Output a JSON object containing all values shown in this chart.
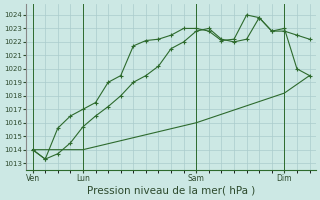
{
  "bg_color": "#cce8e4",
  "grid_color": "#aacccc",
  "line_color": "#2d6a2d",
  "xlabel": "Pression niveau de la mer( hPa )",
  "xlabel_fontsize": 7.5,
  "yticks": [
    1013,
    1014,
    1015,
    1016,
    1017,
    1018,
    1019,
    1020,
    1021,
    1022,
    1023,
    1024
  ],
  "ylim": [
    1012.5,
    1024.8
  ],
  "xtick_labels": [
    "Ven",
    "Lun",
    "Sam",
    "Dim"
  ],
  "xtick_positions": [
    0,
    16,
    52,
    80
  ],
  "xlim": [
    -2,
    90
  ],
  "vlines": [
    0,
    16,
    52,
    80
  ],
  "series1_x": [
    0,
    4,
    8,
    12,
    16,
    20,
    24,
    28,
    32,
    36,
    40,
    44,
    48,
    52,
    56,
    60,
    64,
    68,
    72,
    76,
    80,
    84,
    88
  ],
  "series1_y": [
    1014.0,
    1013.3,
    1013.7,
    1014.5,
    1015.7,
    1016.5,
    1017.2,
    1018.0,
    1019.0,
    1019.5,
    1020.2,
    1021.5,
    1022.0,
    1022.8,
    1023.0,
    1022.2,
    1022.0,
    1022.2,
    1023.8,
    1022.8,
    1022.8,
    1022.5,
    1022.2
  ],
  "series2_x": [
    0,
    4,
    8,
    12,
    16,
    20,
    24,
    28,
    32,
    36,
    40,
    44,
    48,
    52,
    56,
    60,
    64,
    68,
    72,
    76,
    80,
    84,
    88
  ],
  "series2_y": [
    1014.0,
    1013.3,
    1015.6,
    1016.5,
    1017.0,
    1017.5,
    1019.0,
    1019.5,
    1021.7,
    1022.1,
    1022.2,
    1022.5,
    1023.0,
    1023.0,
    1022.8,
    1022.1,
    1022.2,
    1024.0,
    1023.8,
    1022.8,
    1023.0,
    1020.0,
    1019.5
  ],
  "series3_x": [
    0,
    16,
    52,
    80,
    88
  ],
  "series3_y": [
    1014.0,
    1014.0,
    1016.0,
    1018.2,
    1019.5
  ]
}
